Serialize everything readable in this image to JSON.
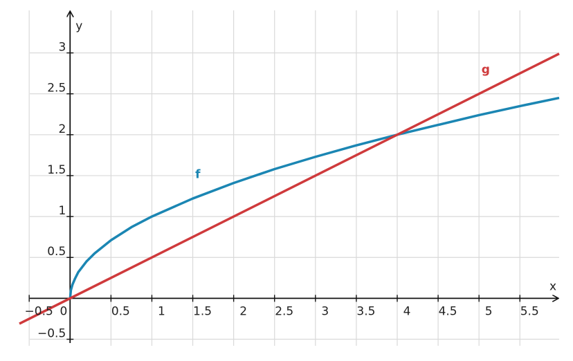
{
  "chart_data": {
    "type": "line",
    "x_label": "x",
    "y_label": "y",
    "xlim": [
      -0.62,
      5.98
    ],
    "ylim": [
      -0.58,
      3.52
    ],
    "xticks": [
      {
        "value": -0.5,
        "label": "−0.5"
      },
      0,
      0.5,
      1,
      1.5,
      2,
      2.5,
      3,
      3.5,
      4,
      4.5,
      5,
      5.5
    ],
    "yticks": [
      {
        "value": -0.5,
        "label": "−0.5"
      },
      0.5,
      1,
      1.5,
      2,
      2.5,
      3
    ],
    "grid": true,
    "series": [
      {
        "name": "f",
        "color": "#1b86b3",
        "x": [
          0,
          0.01,
          0.03,
          0.06,
          0.1,
          0.2,
          0.3,
          0.5,
          0.75,
          1,
          1.5,
          2,
          2.5,
          3,
          3.5,
          4,
          4.5,
          5,
          5.5,
          5.98
        ],
        "values": [
          0,
          0.1,
          0.17,
          0.24,
          0.32,
          0.45,
          0.55,
          0.71,
          0.87,
          1,
          1.22,
          1.41,
          1.58,
          1.73,
          1.87,
          2,
          2.12,
          2.24,
          2.35,
          2.45
        ]
      },
      {
        "name": "g",
        "color": "#cf3a3c",
        "x": [
          -0.62,
          5.98
        ],
        "values": [
          -0.31,
          2.99
        ]
      }
    ]
  }
}
